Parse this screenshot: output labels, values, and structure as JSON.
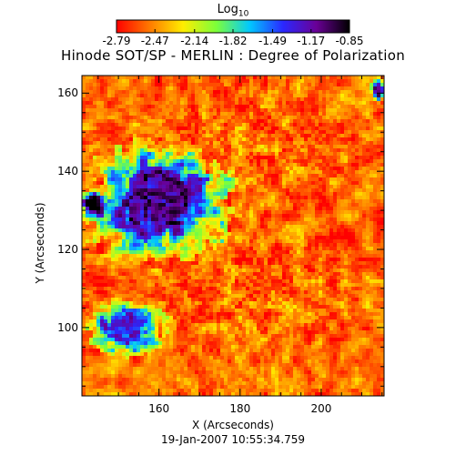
{
  "chart_data": {
    "type": "heatmap",
    "title": "Hinode SOT/SP - MERLIN : Degree of Polarization",
    "xlabel": "X (Arcseconds)",
    "ylabel": "Y (Arcseconds)",
    "timestamp": "19-Jan-2007 10:55:34.759",
    "colorbar": {
      "label": "Log",
      "label_subscript": "10",
      "range": [
        -2.79,
        -0.85
      ],
      "tick_labels": [
        "-2.79",
        "-2.47",
        "-2.14",
        "-1.82",
        "-1.49",
        "-1.17",
        "-0.85"
      ],
      "tick_values": [
        -2.79,
        -2.47,
        -2.14,
        -1.82,
        -1.49,
        -1.17,
        -0.85
      ],
      "colormap": [
        "#ff0000",
        "#ff7a00",
        "#ffee00",
        "#7cff3a",
        "#00c8ff",
        "#2a28ff",
        "#6a0096",
        "#000000"
      ]
    },
    "xlim": [
      141,
      215.5
    ],
    "ylim": [
      82.5,
      164.5
    ],
    "xticks": [
      160,
      180,
      200
    ],
    "xtick_labels": [
      "160",
      "180",
      "200"
    ],
    "yticks": [
      100,
      120,
      140,
      160
    ],
    "ytick_labels": [
      "100",
      "120",
      "140",
      "160"
    ],
    "grid": false,
    "regions": [
      {
        "name": "polarized patch",
        "x_center": 160,
        "y_center": 132,
        "x_radius": 18,
        "y_radius": 16,
        "level": -1.2
      },
      {
        "name": "plage core",
        "x_center": 144,
        "y_center": 131,
        "x_radius": 4,
        "y_radius": 5,
        "level": -0.9
      },
      {
        "name": "lower arc",
        "x_center": 152,
        "y_center": 100,
        "x_radius": 10,
        "y_radius": 8,
        "level": -1.45
      },
      {
        "name": "right edge patch",
        "x_center": 214,
        "y_center": 161,
        "x_radius": 2,
        "y_radius": 3,
        "level": -1.3
      },
      {
        "name": "background",
        "level": -2.55
      }
    ]
  }
}
